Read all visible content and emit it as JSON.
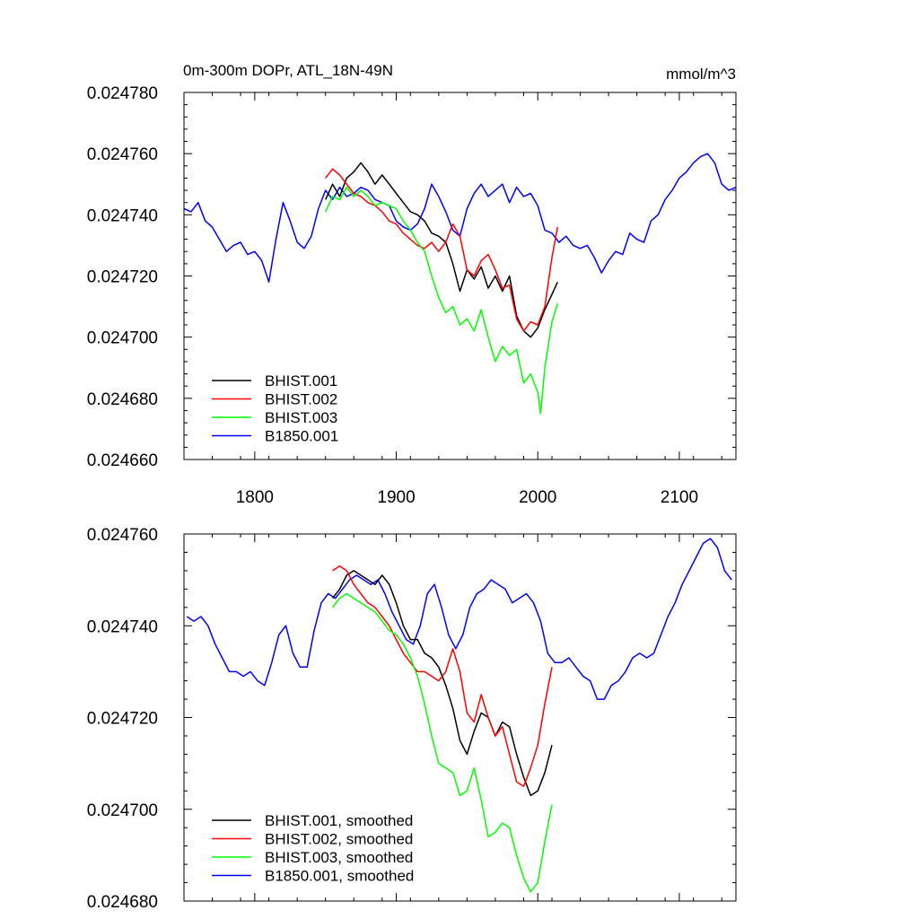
{
  "chart_data": [
    {
      "type": "line",
      "title": "0m-300m DOPr, ATL_18N-49N",
      "units": "mmol/m^3",
      "xlim": [
        1750,
        2140
      ],
      "ylim": [
        0.02466,
        0.02478
      ],
      "x_ticks": [
        1800,
        1900,
        2000,
        2100
      ],
      "x_tick_labels": [
        "1800",
        "1900",
        "2000",
        "2100"
      ],
      "y_ticks": [
        0.02466,
        0.02468,
        0.0247,
        0.02472,
        0.02474,
        0.02476,
        0.02478
      ],
      "y_tick_labels": [
        "0.024660",
        "0.024680",
        "0.024700",
        "0.024720",
        "0.024740",
        "0.024760",
        "0.024780"
      ],
      "legend_position": "bottom-left",
      "grid": false,
      "series": [
        {
          "name": "BHIST.001",
          "color": "#000000",
          "x": [
            1850,
            1855,
            1860,
            1865,
            1870,
            1875,
            1880,
            1885,
            1890,
            1895,
            1900,
            1905,
            1910,
            1915,
            1920,
            1925,
            1930,
            1935,
            1940,
            1945,
            1950,
            1955,
            1960,
            1965,
            1970,
            1975,
            1980,
            1985,
            1990,
            1995,
            2000,
            2005,
            2010,
            2014
          ],
          "y": [
            0.024745,
            0.02475,
            0.024746,
            0.024752,
            0.024754,
            0.024757,
            0.024754,
            0.02475,
            0.024753,
            0.02475,
            0.024747,
            0.024744,
            0.024741,
            0.02474,
            0.024738,
            0.024734,
            0.024733,
            0.024731,
            0.024724,
            0.024715,
            0.024722,
            0.024719,
            0.024723,
            0.024716,
            0.02472,
            0.024715,
            0.02472,
            0.024707,
            0.024702,
            0.0247,
            0.024703,
            0.024709,
            0.024714,
            0.024718
          ]
        },
        {
          "name": "BHIST.002",
          "color": "#ff0000",
          "x": [
            1850,
            1855,
            1860,
            1865,
            1870,
            1875,
            1880,
            1885,
            1890,
            1895,
            1900,
            1905,
            1910,
            1915,
            1920,
            1925,
            1930,
            1935,
            1940,
            1945,
            1950,
            1955,
            1960,
            1965,
            1970,
            1975,
            1980,
            1985,
            1990,
            1995,
            2000,
            2005,
            2010,
            2014
          ],
          "y": [
            0.024752,
            0.024755,
            0.024753,
            0.02475,
            0.024747,
            0.024746,
            0.024744,
            0.024743,
            0.024741,
            0.024738,
            0.024737,
            0.024734,
            0.024732,
            0.02473,
            0.024729,
            0.024731,
            0.024728,
            0.024731,
            0.024737,
            0.024733,
            0.024722,
            0.02472,
            0.024725,
            0.024727,
            0.024722,
            0.024716,
            0.024717,
            0.024706,
            0.024702,
            0.024705,
            0.024704,
            0.02471,
            0.024726,
            0.024736
          ]
        },
        {
          "name": "BHIST.003",
          "color": "#00ff00",
          "x": [
            1850,
            1855,
            1860,
            1865,
            1870,
            1875,
            1880,
            1885,
            1890,
            1895,
            1900,
            1905,
            1910,
            1915,
            1920,
            1925,
            1930,
            1935,
            1940,
            1945,
            1950,
            1955,
            1960,
            1965,
            1970,
            1975,
            1980,
            1985,
            1990,
            1995,
            2000,
            2002,
            2005,
            2010,
            2014
          ],
          "y": [
            0.024741,
            0.024746,
            0.024745,
            0.024749,
            0.024746,
            0.024748,
            0.024746,
            0.024743,
            0.024744,
            0.024743,
            0.024742,
            0.024738,
            0.024735,
            0.024731,
            0.024728,
            0.02472,
            0.024713,
            0.024708,
            0.02471,
            0.024704,
            0.024706,
            0.024702,
            0.024709,
            0.0247,
            0.024692,
            0.024697,
            0.024694,
            0.024696,
            0.024685,
            0.024688,
            0.024682,
            0.024675,
            0.02469,
            0.024705,
            0.024711
          ]
        },
        {
          "name": "B1850.001",
          "color": "#0000ff",
          "x": [
            1750,
            1755,
            1760,
            1765,
            1770,
            1775,
            1780,
            1785,
            1790,
            1795,
            1800,
            1805,
            1810,
            1815,
            1820,
            1825,
            1830,
            1835,
            1840,
            1845,
            1850,
            1855,
            1860,
            1865,
            1870,
            1875,
            1880,
            1885,
            1890,
            1895,
            1900,
            1905,
            1910,
            1915,
            1920,
            1925,
            1930,
            1935,
            1940,
            1945,
            1950,
            1955,
            1960,
            1965,
            1970,
            1975,
            1980,
            1985,
            1990,
            1995,
            2000,
            2005,
            2010,
            2015,
            2020,
            2025,
            2030,
            2035,
            2040,
            2045,
            2050,
            2055,
            2060,
            2065,
            2070,
            2075,
            2080,
            2085,
            2090,
            2095,
            2100,
            2105,
            2110,
            2115,
            2120,
            2125,
            2130,
            2135,
            2140
          ],
          "y": [
            0.024742,
            0.024741,
            0.024744,
            0.024738,
            0.024736,
            0.024732,
            0.024728,
            0.02473,
            0.024731,
            0.024727,
            0.024728,
            0.024725,
            0.024718,
            0.024732,
            0.024744,
            0.024738,
            0.024731,
            0.024729,
            0.024733,
            0.024742,
            0.024748,
            0.024745,
            0.024749,
            0.024746,
            0.024747,
            0.024749,
            0.024748,
            0.024745,
            0.024744,
            0.024743,
            0.024738,
            0.024736,
            0.024735,
            0.024737,
            0.024742,
            0.02475,
            0.024746,
            0.024741,
            0.024735,
            0.024733,
            0.024742,
            0.024747,
            0.02475,
            0.024746,
            0.024748,
            0.02475,
            0.024744,
            0.024749,
            0.024746,
            0.024747,
            0.024743,
            0.024735,
            0.024734,
            0.024731,
            0.024733,
            0.02473,
            0.024729,
            0.02473,
            0.024726,
            0.024721,
            0.024725,
            0.024728,
            0.024727,
            0.024734,
            0.024732,
            0.024731,
            0.024738,
            0.02474,
            0.024745,
            0.024748,
            0.024752,
            0.024754,
            0.024757,
            0.024759,
            0.02476,
            0.024757,
            0.02475,
            0.024748,
            0.024749
          ]
        }
      ]
    },
    {
      "type": "line",
      "xlim": [
        1750,
        2140
      ],
      "ylim": [
        0.02468,
        0.02476
      ],
      "x_ticks": [
        1800,
        1900,
        2000,
        2100
      ],
      "y_ticks": [
        0.02468,
        0.0247,
        0.02472,
        0.02474,
        0.02476
      ],
      "y_tick_labels": [
        "0.024680",
        "0.024700",
        "0.024720",
        "0.024740",
        "0.024760"
      ],
      "legend_position": "bottom-left",
      "grid": false,
      "series": [
        {
          "name": "BHIST.001, smoothed",
          "color": "#000000",
          "x": [
            1855,
            1860,
            1865,
            1870,
            1875,
            1880,
            1885,
            1890,
            1895,
            1900,
            1905,
            1910,
            1915,
            1920,
            1925,
            1930,
            1935,
            1940,
            1945,
            1950,
            1955,
            1960,
            1965,
            1970,
            1975,
            1980,
            1985,
            1990,
            1995,
            2000,
            2005,
            2010
          ],
          "y": [
            0.024746,
            0.024748,
            0.024751,
            0.024752,
            0.024751,
            0.02475,
            0.024749,
            0.024751,
            0.024749,
            0.024745,
            0.02474,
            0.024737,
            0.024737,
            0.024734,
            0.024733,
            0.024731,
            0.024727,
            0.024722,
            0.024715,
            0.024712,
            0.024717,
            0.024721,
            0.02472,
            0.024716,
            0.024719,
            0.024718,
            0.024712,
            0.024707,
            0.024703,
            0.024704,
            0.024708,
            0.024714
          ]
        },
        {
          "name": "BHIST.002, smoothed",
          "color": "#ff0000",
          "x": [
            1855,
            1860,
            1865,
            1870,
            1875,
            1880,
            1885,
            1890,
            1895,
            1900,
            1905,
            1910,
            1915,
            1920,
            1925,
            1930,
            1935,
            1940,
            1945,
            1950,
            1955,
            1960,
            1965,
            1970,
            1975,
            1980,
            1985,
            1990,
            1995,
            2000,
            2005,
            2010
          ],
          "y": [
            0.024752,
            0.024753,
            0.024752,
            0.024749,
            0.024747,
            0.024745,
            0.024744,
            0.024742,
            0.02474,
            0.024737,
            0.024734,
            0.024732,
            0.02473,
            0.02473,
            0.024729,
            0.024728,
            0.02473,
            0.024735,
            0.02473,
            0.024721,
            0.024719,
            0.024725,
            0.02472,
            0.024716,
            0.024718,
            0.024712,
            0.024706,
            0.024705,
            0.024709,
            0.024714,
            0.024723,
            0.024731
          ]
        },
        {
          "name": "BHIST.003, smoothed",
          "color": "#00ff00",
          "x": [
            1855,
            1860,
            1865,
            1870,
            1875,
            1880,
            1885,
            1890,
            1895,
            1900,
            1905,
            1910,
            1915,
            1920,
            1925,
            1930,
            1935,
            1940,
            1945,
            1950,
            1955,
            1960,
            1965,
            1970,
            1975,
            1980,
            1985,
            1990,
            1995,
            2000,
            2005,
            2010
          ],
          "y": [
            0.024744,
            0.024746,
            0.024747,
            0.024746,
            0.024745,
            0.024744,
            0.024743,
            0.024741,
            0.024739,
            0.024738,
            0.024736,
            0.024733,
            0.024729,
            0.024723,
            0.024716,
            0.02471,
            0.024709,
            0.024708,
            0.024703,
            0.024704,
            0.024709,
            0.024702,
            0.024694,
            0.024695,
            0.024697,
            0.024696,
            0.02469,
            0.024685,
            0.024682,
            0.024684,
            0.024693,
            0.024701
          ]
        },
        {
          "name": "B1850.001, smoothed",
          "color": "#0000ff",
          "x": [
            1752,
            1757,
            1762,
            1767,
            1772,
            1777,
            1782,
            1787,
            1792,
            1797,
            1802,
            1807,
            1812,
            1817,
            1822,
            1827,
            1832,
            1837,
            1842,
            1847,
            1852,
            1857,
            1862,
            1867,
            1872,
            1877,
            1882,
            1887,
            1892,
            1897,
            1902,
            1907,
            1912,
            1917,
            1922,
            1927,
            1932,
            1937,
            1942,
            1947,
            1952,
            1957,
            1962,
            1967,
            1972,
            1977,
            1982,
            1987,
            1992,
            1997,
            2002,
            2007,
            2012,
            2017,
            2022,
            2027,
            2032,
            2037,
            2042,
            2047,
            2052,
            2057,
            2062,
            2067,
            2072,
            2077,
            2082,
            2087,
            2092,
            2097,
            2102,
            2107,
            2112,
            2117,
            2122,
            2127,
            2132,
            2137
          ],
          "y": [
            0.024742,
            0.024741,
            0.024742,
            0.02474,
            0.024736,
            0.024733,
            0.02473,
            0.02473,
            0.024729,
            0.02473,
            0.024728,
            0.024727,
            0.024732,
            0.024738,
            0.02474,
            0.024734,
            0.024731,
            0.024731,
            0.024739,
            0.024745,
            0.024747,
            0.024746,
            0.024748,
            0.02475,
            0.024751,
            0.02475,
            0.024749,
            0.02475,
            0.024747,
            0.024743,
            0.02474,
            0.024737,
            0.024736,
            0.02474,
            0.024747,
            0.024749,
            0.024744,
            0.024738,
            0.024735,
            0.024738,
            0.024744,
            0.024747,
            0.024748,
            0.02475,
            0.024749,
            0.024748,
            0.024745,
            0.024746,
            0.024747,
            0.024745,
            0.024741,
            0.024734,
            0.024732,
            0.024732,
            0.024733,
            0.024731,
            0.024729,
            0.024728,
            0.024724,
            0.024724,
            0.024727,
            0.024728,
            0.02473,
            0.024733,
            0.024734,
            0.024733,
            0.024734,
            0.024738,
            0.024742,
            0.024745,
            0.024749,
            0.024752,
            0.024755,
            0.024758,
            0.024759,
            0.024757,
            0.024752,
            0.02475
          ]
        }
      ]
    }
  ]
}
